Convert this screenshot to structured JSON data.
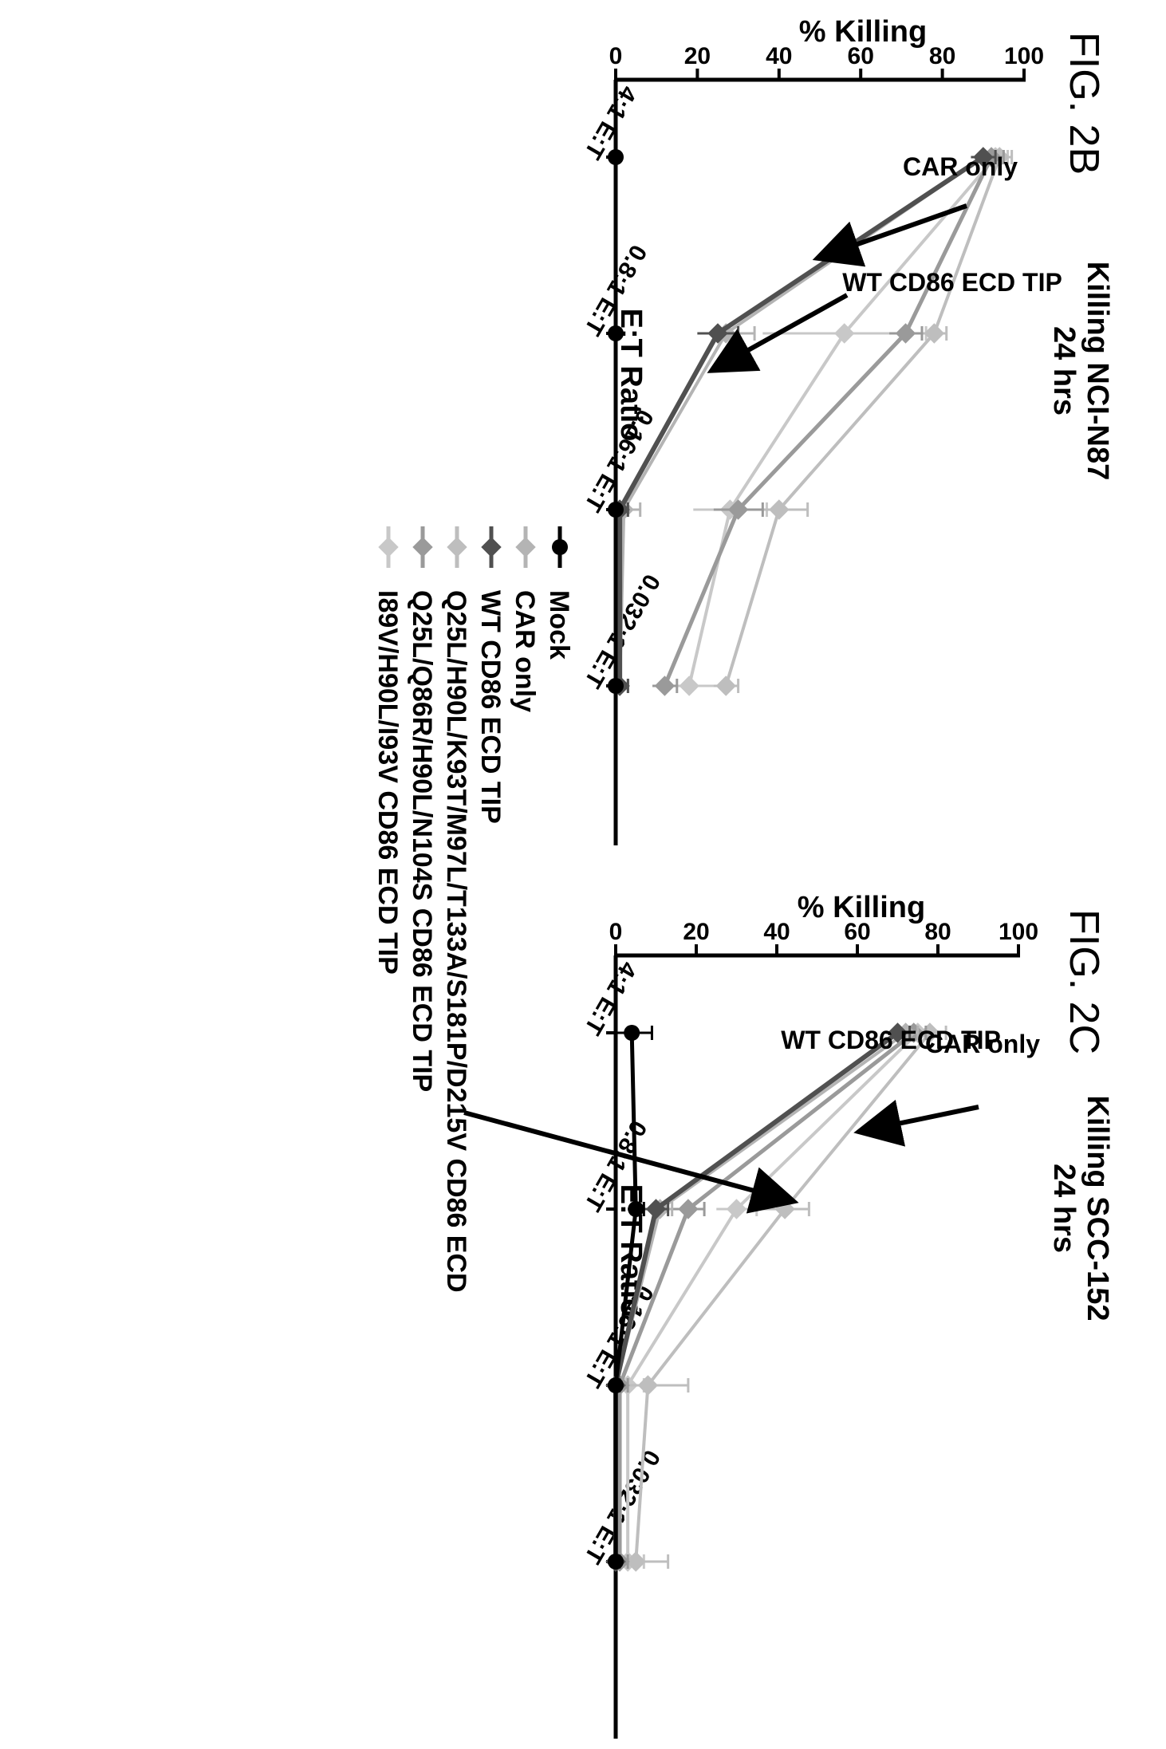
{
  "legend": {
    "placement": "bottom",
    "entries": [
      {
        "label": "Mock",
        "color": "#000000",
        "marker": "circle"
      },
      {
        "label": "CAR only",
        "color": "#b4b4b4",
        "marker": "diamond"
      },
      {
        "label": "WT CD86 ECD TIP",
        "color": "#505050",
        "marker": "diamond"
      },
      {
        "label": "Q25L/H90L/K93T/M97L/T133A/S181P/D215V CD86 ECD",
        "color": "#bebebe",
        "marker": "diamond"
      },
      {
        "label": "Q25L/Q86R/H90L/N104S CD86 ECD TIP",
        "color": "#9a9a9a",
        "marker": "diamond"
      },
      {
        "label": "I89V/H90L/I93V CD86 ECD TIP",
        "color": "#c8c8c8",
        "marker": "diamond"
      }
    ]
  },
  "chart_data": [
    {
      "type": "line",
      "figure_label": "FIG. 2B",
      "title": "Killing NCI-N87",
      "subtitle": "24 hrs",
      "xlabel": "E:T Ratio",
      "ylabel": "% Killing",
      "categories": [
        "4:1 E:T",
        "0.8:1 E:T",
        "0.16:1 E:T",
        "0.032:1 E:T"
      ],
      "ylim": [
        0,
        100
      ],
      "yticks": [
        0,
        20,
        40,
        60,
        80,
        100
      ],
      "grid": false,
      "series": [
        {
          "name": "Mock",
          "values": [
            0,
            0,
            0,
            0
          ],
          "err": [
            0,
            0,
            0,
            0
          ]
        },
        {
          "name": "CAR only",
          "values": [
            90,
            27,
            2,
            1
          ],
          "err": [
            3,
            7,
            4,
            2
          ]
        },
        {
          "name": "WT CD86 ECD TIP",
          "values": [
            90,
            25,
            1,
            1
          ],
          "err": [
            3,
            5,
            2,
            2
          ]
        },
        {
          "name": "Q25L/H90L/K93T/M97L/T133A/S181P/D215V CD86 ECD",
          "values": [
            94,
            78,
            40,
            27
          ],
          "err": [
            3,
            3,
            7,
            3
          ]
        },
        {
          "name": "Q25L/Q86R/H90L/N104S CD86 ECD TIP",
          "values": [
            92,
            71,
            30,
            12
          ],
          "err": [
            3,
            4,
            6,
            3
          ]
        },
        {
          "name": "I89V/H90L/I93V CD86 ECD TIP",
          "values": [
            93,
            56,
            28,
            18
          ],
          "err": [
            3,
            20,
            9,
            9
          ]
        }
      ],
      "annotations": [
        "CAR only",
        "WT CD86 ECD TIP"
      ]
    },
    {
      "type": "line",
      "figure_label": "FIG. 2C",
      "title": "Killing SCC-152",
      "subtitle": "24 hrs",
      "xlabel": "E:T Ratio",
      "ylabel": "% Killing",
      "categories": [
        "4:1 E:T",
        "0.8:1 E:T",
        "0.16:1 E:T",
        "0.032:1 E:T"
      ],
      "ylim": [
        0,
        100
      ],
      "yticks": [
        0,
        20,
        40,
        60,
        80,
        100
      ],
      "grid": false,
      "series": [
        {
          "name": "Mock",
          "values": [
            4,
            5,
            0,
            0
          ],
          "err": [
            5,
            2,
            0,
            0
          ]
        },
        {
          "name": "CAR only",
          "values": [
            72,
            11,
            0,
            0
          ],
          "err": [
            3,
            3,
            1,
            1
          ]
        },
        {
          "name": "WT CD86 ECD TIP",
          "values": [
            70,
            10,
            0,
            0
          ],
          "err": [
            3,
            3,
            1,
            1
          ]
        },
        {
          "name": "Q25L/H90L/K93T/M97L/T133A/S181P/D215V CD86 ECD",
          "values": [
            78,
            42,
            8,
            5
          ],
          "err": [
            4,
            6,
            10,
            8
          ]
        },
        {
          "name": "Q25L/Q86R/H90L/N104S CD86 ECD TIP",
          "values": [
            74,
            18,
            1,
            1
          ],
          "err": [
            3,
            4,
            2,
            2
          ]
        },
        {
          "name": "I89V/H90L/I93V CD86 ECD TIP",
          "values": [
            75,
            30,
            3,
            3
          ],
          "err": [
            3,
            5,
            4,
            4
          ]
        }
      ],
      "annotations": [
        "CAR only",
        "WT CD86 ECD TIP"
      ]
    }
  ]
}
